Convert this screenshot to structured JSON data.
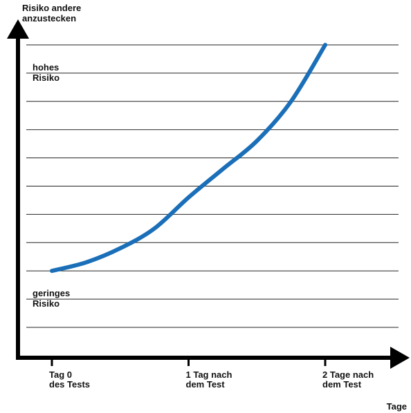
{
  "chart_data": {
    "type": "line",
    "title": "",
    "ylabel": [
      "Risiko andere",
      "anzustecken"
    ],
    "xlabel": "Tage",
    "ylim": [
      0,
      10
    ],
    "xlim": [
      0,
      2
    ],
    "grid": true,
    "gridlines": 10,
    "x_ticks": [
      {
        "value": 0,
        "lines": [
          "Tag  0",
          "des Tests"
        ]
      },
      {
        "value": 1,
        "lines": [
          "1 Tag nach",
          "dem Test"
        ]
      },
      {
        "value": 2,
        "lines": [
          "2 Tage nach",
          "dem Test"
        ]
      }
    ],
    "y_annotations": [
      {
        "value": 9,
        "lines": [
          "hohes",
          "Risiko"
        ]
      },
      {
        "value": 1,
        "lines": [
          "geringes",
          "Risiko"
        ]
      }
    ],
    "series": [
      {
        "color": "#1a6fb8",
        "x": [
          0,
          0.25,
          0.5,
          0.75,
          1.0,
          1.25,
          1.5,
          1.75,
          2.0
        ],
        "y": [
          2.0,
          2.3,
          2.8,
          3.5,
          4.6,
          5.6,
          6.6,
          8.0,
          10.0
        ]
      }
    ]
  }
}
